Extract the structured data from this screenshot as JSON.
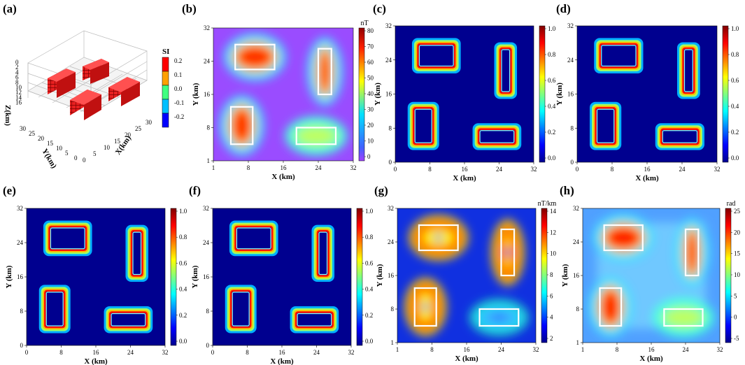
{
  "panels": [
    {
      "id": "a",
      "label": "(a)",
      "type": "3d-model",
      "colorbar": {
        "title": "SI",
        "ticks": [
          "0.2",
          "0.1",
          "0.0",
          "-0.1",
          "-0.2"
        ]
      },
      "axes": {
        "zlabel": "Z(km)",
        "ylabel": "Y(km)",
        "xlabel": "X(km)",
        "zticks": [
          "0",
          "2",
          "4",
          "6",
          "8",
          "10",
          "12",
          "14",
          "16"
        ],
        "yticks": [
          "30",
          "25",
          "20",
          "15",
          "10",
          "5",
          "0"
        ],
        "xticks": [
          "0",
          "5",
          "10",
          "15",
          "20",
          "25",
          "30"
        ]
      }
    },
    {
      "id": "b",
      "label": "(b)",
      "type": "heatmap",
      "field": "tmi",
      "colorbar": {
        "unit": "nT",
        "ticks": [
          "80",
          "70",
          "60",
          "50",
          "40",
          "30",
          "20",
          "10",
          "0"
        ]
      },
      "xticks": [
        "1",
        "8",
        "16",
        "24",
        "32"
      ],
      "yticks": [
        "32",
        "24",
        "16",
        "8",
        "1"
      ],
      "xlabel": "X (km)",
      "ylabel": "Y (km)",
      "boxes": true
    },
    {
      "id": "c",
      "label": "(c)",
      "type": "heatmap",
      "field": "edge",
      "colorbar": {
        "unit": "",
        "ticks": [
          "1.0",
          "0.8",
          "0.6",
          "0.4",
          "0.2",
          "0.0"
        ]
      },
      "xticks": [
        "0",
        "8",
        "16",
        "24",
        "32"
      ],
      "yticks": [
        "32",
        "24",
        "16",
        "8",
        "0"
      ],
      "xlabel": "X (km)",
      "ylabel": "Y (km)",
      "boxes": false
    },
    {
      "id": "d",
      "label": "(d)",
      "type": "heatmap",
      "field": "edge",
      "colorbar": {
        "unit": "",
        "ticks": [
          "1.0",
          "0.8",
          "0.6",
          "0.4",
          "0.2",
          "0.0"
        ]
      },
      "xticks": [
        "0",
        "8",
        "16",
        "24",
        "32"
      ],
      "yticks": [
        "32",
        "24",
        "16",
        "8",
        "0"
      ],
      "xlabel": "X (km)",
      "ylabel": "Y (km)",
      "boxes": false
    },
    {
      "id": "e",
      "label": "(e)",
      "type": "heatmap",
      "field": "edge",
      "colorbar": {
        "unit": "",
        "ticks": [
          "1.0",
          "0.8",
          "0.6",
          "0.4",
          "0.2",
          "0.0"
        ]
      },
      "xticks": [
        "0",
        "8",
        "16",
        "24",
        "32"
      ],
      "yticks": [
        "32",
        "24",
        "16",
        "8",
        "0"
      ],
      "xlabel": "X (km)",
      "ylabel": "Y (km)",
      "boxes": false
    },
    {
      "id": "f",
      "label": "(f)",
      "type": "heatmap",
      "field": "edge",
      "colorbar": {
        "unit": "",
        "ticks": [
          "1.0",
          "0.8",
          "0.6",
          "0.4",
          "0.2",
          "0.0"
        ]
      },
      "xticks": [
        "0",
        "8",
        "16",
        "24",
        "32"
      ],
      "yticks": [
        "32",
        "24",
        "16",
        "8",
        "0"
      ],
      "xlabel": "X (km)",
      "ylabel": "Y (km)",
      "boxes": false
    },
    {
      "id": "g",
      "label": "(g)",
      "type": "heatmap",
      "field": "gradient",
      "colorbar": {
        "unit": "nT/km",
        "ticks": [
          "14",
          "12",
          "10",
          "8",
          "6",
          "4",
          "2"
        ]
      },
      "xticks": [
        "1",
        "8",
        "16",
        "24",
        "32"
      ],
      "yticks": [
        "32",
        "24",
        "16",
        "8",
        "1"
      ],
      "xlabel": "X (km)",
      "ylabel": "Y (km)",
      "boxes": true
    },
    {
      "id": "h",
      "label": "(h)",
      "type": "heatmap",
      "field": "phase",
      "colorbar": {
        "unit": "rad",
        "ticks": [
          "25",
          "20",
          "15",
          "10",
          "5",
          "0",
          "-5"
        ]
      },
      "xticks": [
        "1",
        "8",
        "16",
        "24",
        "32"
      ],
      "yticks": [
        "32",
        "24",
        "16",
        "8",
        "1"
      ],
      "xlabel": "X (km)",
      "ylabel": "Y (km)",
      "boxes": true
    }
  ],
  "chart_data": {
    "type": "heatmap",
    "grid": {
      "x_range_km": [
        0,
        32
      ],
      "y_range_km": [
        0,
        32
      ]
    },
    "bodies_km": [
      {
        "name": "",
        "x": [
          5,
          14
        ],
        "y": [
          22,
          28
        ]
      },
      {
        "name": "",
        "x": [
          4,
          9
        ],
        "y": [
          4,
          13
        ]
      },
      {
        "name": "",
        "x": [
          24,
          27
        ],
        "y": [
          16,
          27
        ]
      },
      {
        "name": "",
        "x": [
          19,
          28
        ],
        "y": [
          4,
          8
        ]
      }
    ],
    "susceptibility_si": [
      0.2,
      0.2,
      0.2,
      0.2
    ],
    "tmi_peak_nT": [
      80,
      78,
      72,
      18
    ],
    "edge_range": [
      0,
      1
    ],
    "gradient_range_nT_per_km": [
      0,
      15
    ],
    "phase_range_rad": [
      -6,
      25
    ]
  },
  "colors": {
    "box": "#ffffff",
    "background": "#ffffff",
    "grid": "#cccccc"
  }
}
